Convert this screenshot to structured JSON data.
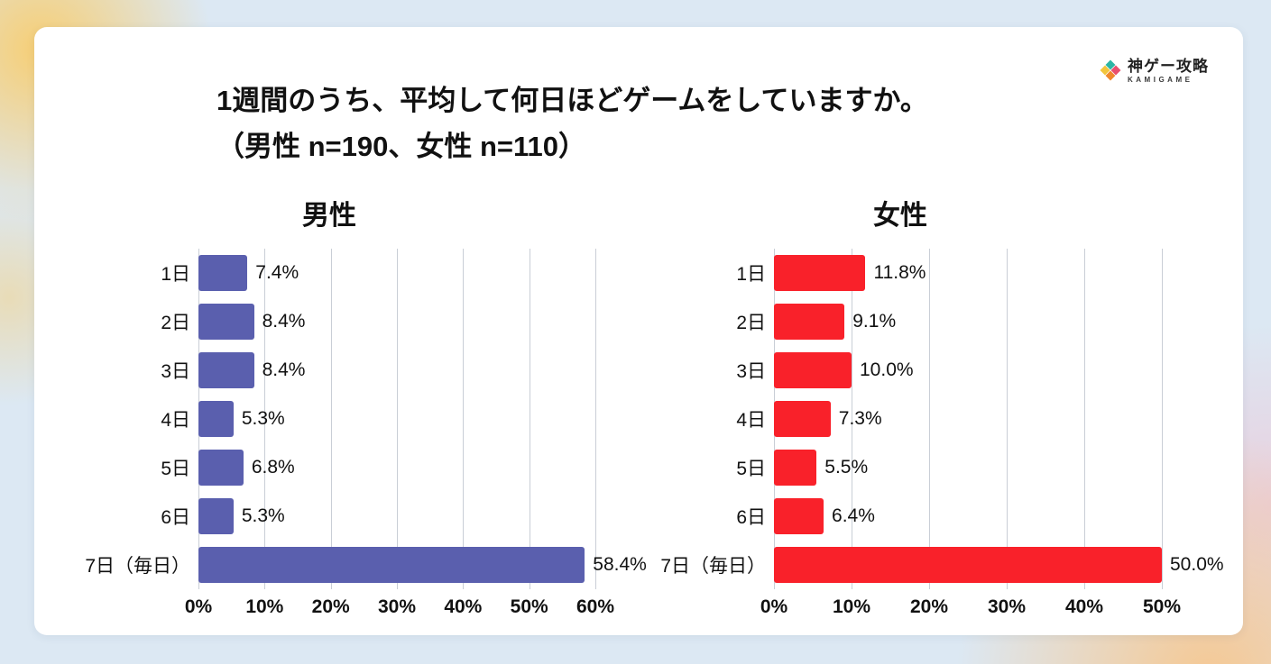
{
  "page": {
    "title_line1": "1週間のうち、平均して何日ほどゲームをしていますか。",
    "title_line2": "（男性 n=190、女性 n=110）"
  },
  "logo": {
    "name": "神ゲー攻略",
    "subtext": "KAMIGAME"
  },
  "colors": {
    "male_bar": "#5a5fae",
    "female_bar": "#f9212a",
    "gridline": "#c9ced6",
    "card_background": "#ffffff",
    "page_background": "#dce8f3"
  },
  "chart_data": [
    {
      "type": "bar",
      "orientation": "horizontal",
      "title": "男性",
      "categories": [
        "1日",
        "2日",
        "3日",
        "4日",
        "5日",
        "6日",
        "7日（毎日）"
      ],
      "values": [
        7.4,
        8.4,
        8.4,
        5.3,
        6.8,
        5.3,
        58.4
      ],
      "value_labels": [
        "7.4%",
        "8.4%",
        "8.4%",
        "5.3%",
        "6.8%",
        "5.3%",
        "58.4%"
      ],
      "xlim": [
        0,
        60
      ],
      "tick_step": 10,
      "tick_labels": [
        "0%",
        "10%",
        "20%",
        "30%",
        "40%",
        "50%",
        "60%"
      ],
      "bar_color": "#5a5fae",
      "grid": true,
      "legend": "none"
    },
    {
      "type": "bar",
      "orientation": "horizontal",
      "title": "女性",
      "categories": [
        "1日",
        "2日",
        "3日",
        "4日",
        "5日",
        "6日",
        "7日（毎日）"
      ],
      "values": [
        11.8,
        9.1,
        10.0,
        7.3,
        5.5,
        6.4,
        50.0
      ],
      "value_labels": [
        "11.8%",
        "9.1%",
        "10.0%",
        "7.3%",
        "5.5%",
        "6.4%",
        "50.0%"
      ],
      "xlim": [
        0,
        50
      ],
      "tick_step": 10,
      "tick_labels": [
        "0%",
        "10%",
        "20%",
        "30%",
        "40%",
        "50%"
      ],
      "bar_color": "#f9212a",
      "grid": true,
      "legend": "none"
    }
  ]
}
